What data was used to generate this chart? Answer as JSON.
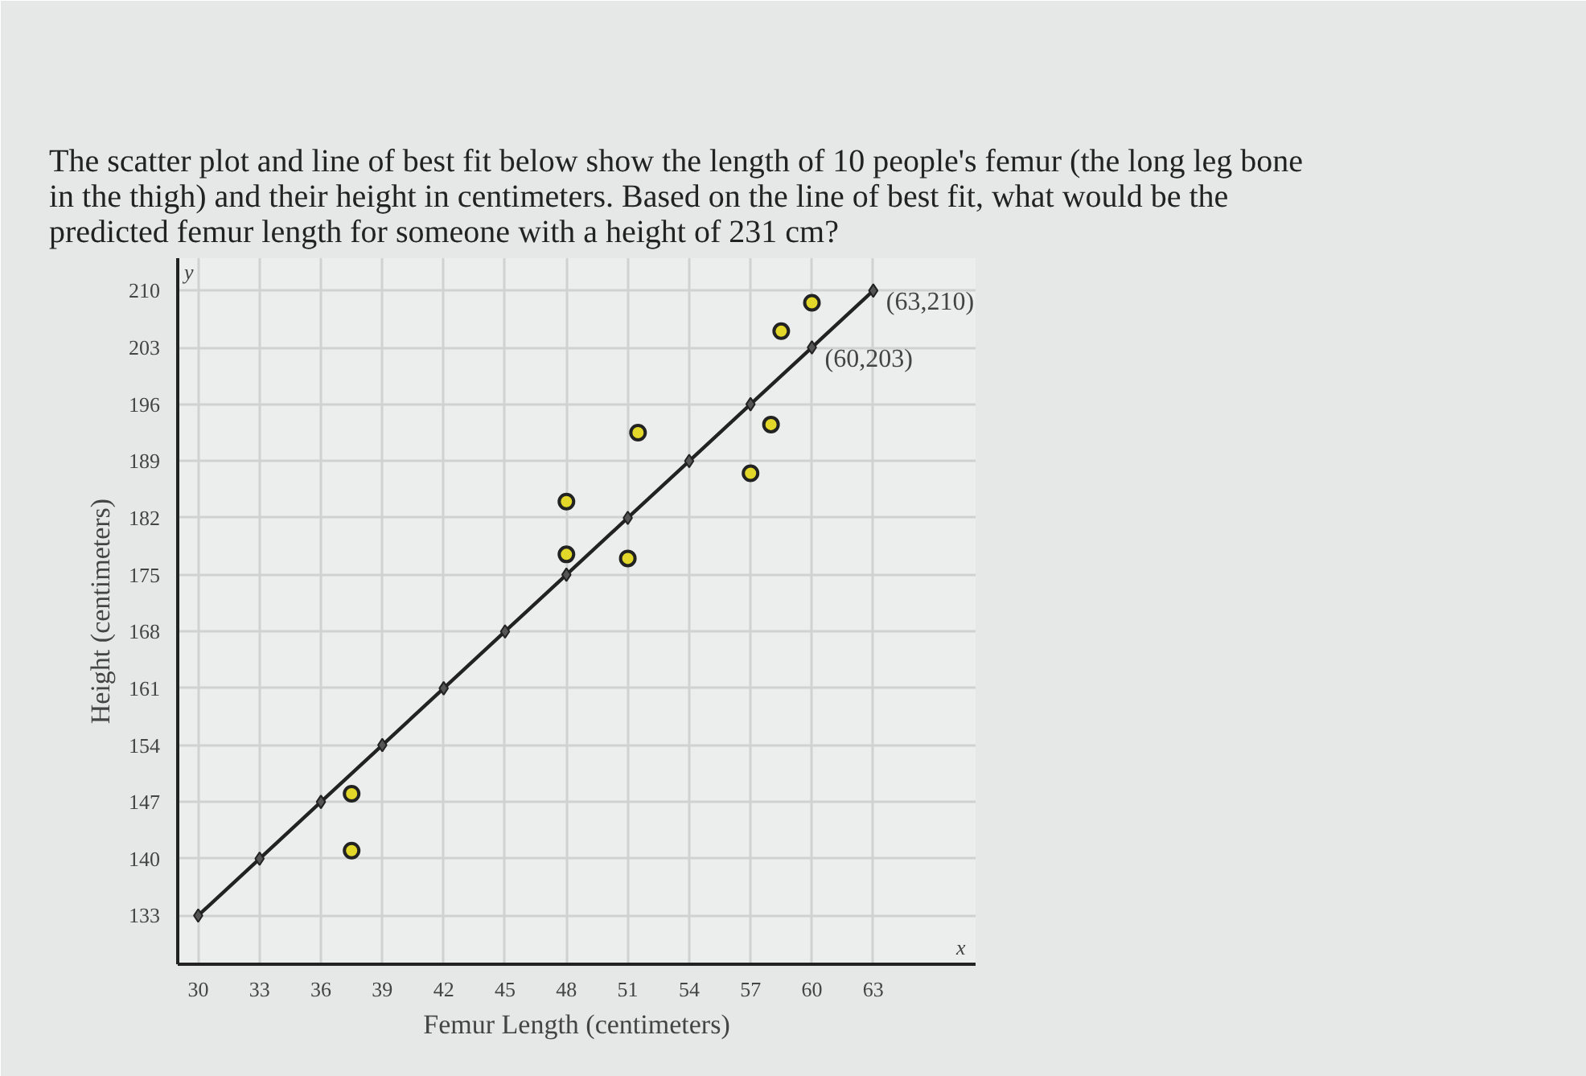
{
  "chart_data": {
    "type": "scatter",
    "title": "The scatter plot and line of best fit below show the length of 10 people's femur (the long leg bone\nin the thigh) and their height in centimeters. Based on the line of best fit, what would be the\npredicted femur length for someone with a height of 231 cm?",
    "xlabel": "Femur Length (centimeters)",
    "ylabel": "Height (centimeters)",
    "xlim": [
      29,
      68
    ],
    "ylim": [
      127,
      214
    ],
    "xticks": [
      30,
      33,
      36,
      39,
      42,
      45,
      48,
      51,
      54,
      57,
      60,
      63
    ],
    "yticks": [
      133,
      140,
      147,
      154,
      161,
      168,
      175,
      182,
      189,
      196,
      203,
      210
    ],
    "grid": true,
    "series": [
      {
        "marker": "circle",
        "color": "#e3d829",
        "x": [
          37.5,
          37.5,
          48,
          48,
          51,
          51.5,
          57,
          58,
          58.5,
          60
        ],
        "values": [
          148,
          141,
          184,
          177.5,
          177,
          192.5,
          187.5,
          193.5,
          205,
          208.5
        ]
      },
      {
        "type": "line",
        "marker": "diamond",
        "line_style": "solid",
        "color": "#222222",
        "x": [
          30,
          33,
          36,
          39,
          42,
          45,
          48,
          51,
          54,
          57,
          60,
          63
        ],
        "values": [
          133,
          140,
          147,
          154,
          161,
          168,
          175,
          182,
          189,
          196,
          203,
          210
        ]
      }
    ],
    "annotations": [
      {
        "text": "(63,210)",
        "x": 63,
        "y": 210
      },
      {
        "text": "(60,203)",
        "x": 60,
        "y": 203
      },
      "x",
      "y"
    ]
  }
}
